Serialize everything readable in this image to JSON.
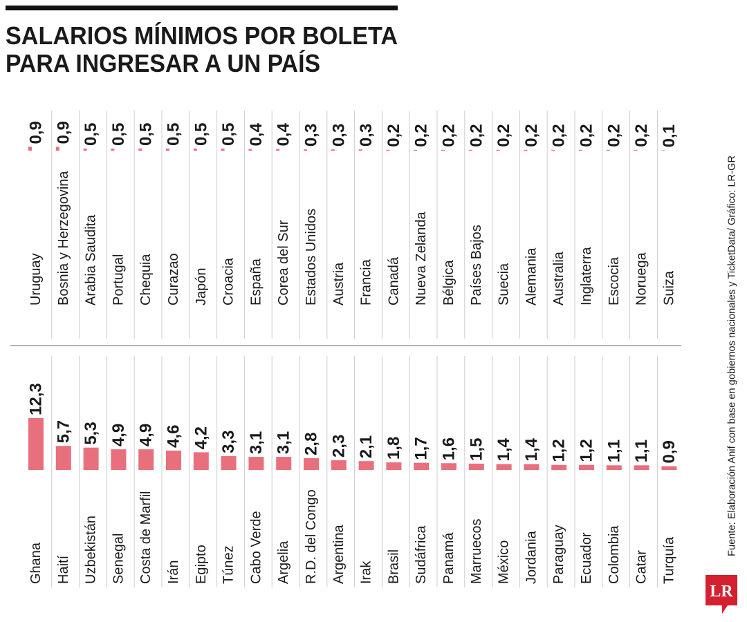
{
  "title": [
    "SALARIOS MÍNIMOS POR BOLETA",
    "PARA INGRESAR A UN PAÍS"
  ],
  "source": "Fuente: Elaboración Anif con base en gobiernos nacionales y TicketData/ Gráfico: LR-GR",
  "logo": "LR",
  "chart_data": [
    {
      "type": "bar",
      "color": "#e8707d",
      "categories": [
        "Uruguay",
        "Bosnia y Herzegovina",
        "Arabia Saudita",
        "Portugal",
        "Chequia",
        "Curazao",
        "Japón",
        "Croacia",
        "España",
        "Corea del Sur",
        "Estados Unidos",
        "Austria",
        "Francia",
        "Canadá",
        "Nueva Zelanda",
        "Bélgica",
        "Países Bajos",
        "Suecia",
        "Alemania",
        "Australia",
        "Inglaterra",
        "Escocia",
        "Noruega",
        "Suiza"
      ],
      "values": [
        0.9,
        0.9,
        0.5,
        0.5,
        0.5,
        0.5,
        0.5,
        0.5,
        0.4,
        0.4,
        0.3,
        0.3,
        0.3,
        0.2,
        0.2,
        0.2,
        0.2,
        0.2,
        0.2,
        0.2,
        0.2,
        0.2,
        0.2,
        0.1
      ],
      "value_labels": [
        "0,9",
        "0,9",
        "0,5",
        "0,5",
        "0,5",
        "0,5",
        "0,5",
        "0,5",
        "0,4",
        "0,4",
        "0,3",
        "0,3",
        "0,3",
        "0,2",
        "0,2",
        "0,2",
        "0,2",
        "0,2",
        "0,2",
        "0,2",
        "0,2",
        "0,2",
        "0,2",
        "0,1"
      ]
    },
    {
      "type": "bar",
      "color": "#e8707d",
      "categories": [
        "Ghana",
        "Haití",
        "Uzbekistán",
        "Senegal",
        "Costa de Marfil",
        "Irán",
        "Egipto",
        "Túnez",
        "Cabo Verde",
        "Argelia",
        "R.D. del Congo",
        "Argentina",
        "Irak",
        "Brasil",
        "Sudáfrica",
        "Panamá",
        "Marruecos",
        "México",
        "Jordania",
        "Paraguay",
        "Ecuador",
        "Colombia",
        "Catar",
        "Turquía"
      ],
      "values": [
        12.3,
        5.7,
        5.3,
        4.9,
        4.9,
        4.6,
        4.2,
        3.3,
        3.1,
        3.1,
        2.8,
        2.3,
        2.1,
        1.8,
        1.7,
        1.6,
        1.5,
        1.4,
        1.4,
        1.2,
        1.2,
        1.1,
        1.1,
        0.9
      ],
      "value_labels": [
        "12,3",
        "5,7",
        "5,3",
        "4,9",
        "4,9",
        "4,6",
        "4,2",
        "3,3",
        "3,1",
        "3,1",
        "2,8",
        "2,3",
        "2,1",
        "1,8",
        "1,7",
        "1,6",
        "1,5",
        "1,4",
        "1,4",
        "1,2",
        "1,2",
        "1,1",
        "1,1",
        "0,9"
      ]
    }
  ]
}
